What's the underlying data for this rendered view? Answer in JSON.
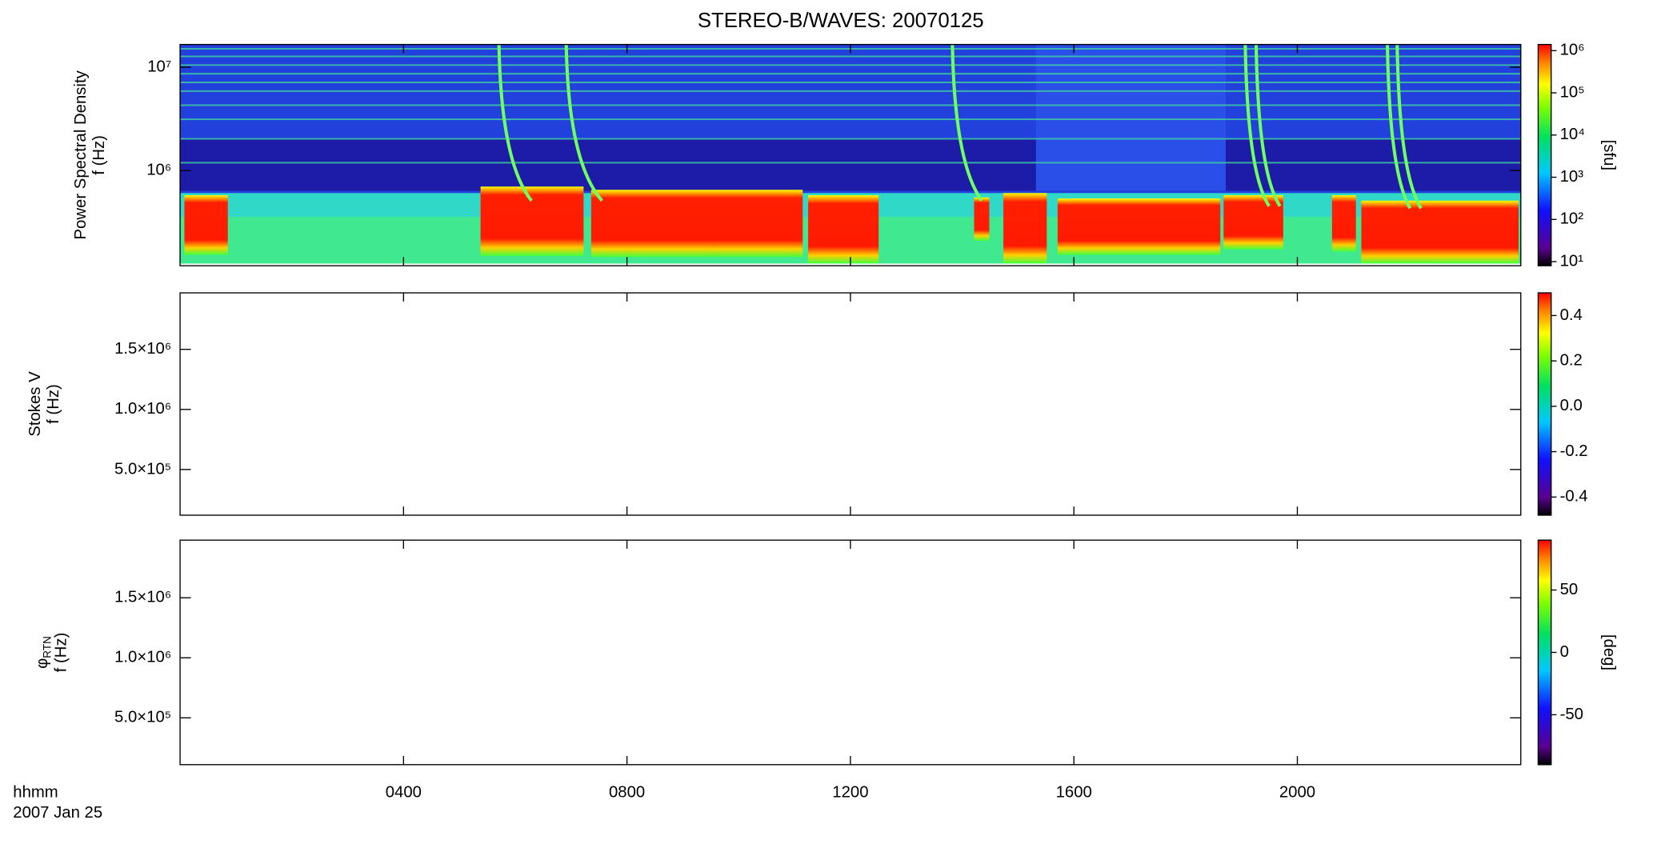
{
  "chart_data": [
    {
      "type": "heatmap",
      "title": "STEREO-B/WAVES: 20070125",
      "ylabel": [
        "Power Spectral Density",
        "f (Hz)"
      ],
      "log_y": true,
      "ylim": [
        120000,
        16600000
      ],
      "yticks": [
        {
          "value": 1000000,
          "label": "10⁶"
        },
        {
          "value": 10000000,
          "label": "10⁷"
        }
      ],
      "colorbar": {
        "log": true,
        "lim": [
          8,
          1400000
        ],
        "label": "[sfu]",
        "ticks": [
          {
            "value": 10,
            "label": "10¹"
          },
          {
            "value": 100,
            "label": "10²"
          },
          {
            "value": 1000,
            "label": "10³"
          },
          {
            "value": 10000,
            "label": "10⁴"
          },
          {
            "value": 100000,
            "label": "10⁵"
          },
          {
            "value": 1000000,
            "label": "10⁶"
          }
        ]
      }
    },
    {
      "type": "heatmap",
      "ylabel": [
        "Stokes V",
        "f (Hz)"
      ],
      "log_y": false,
      "ylim": [
        120000,
        1970000
      ],
      "yticks": [
        {
          "value": 500000,
          "label": "5.0×10⁵"
        },
        {
          "value": 1000000,
          "label": "1.0×10⁶"
        },
        {
          "value": 1500000,
          "label": "1.5×10⁶"
        }
      ],
      "colorbar": {
        "log": false,
        "lim": [
          -0.48,
          0.5
        ],
        "ticks": [
          -0.4,
          -0.2,
          {
            "value": 0,
            "label": "0.0"
          },
          0.2,
          0.4
        ]
      }
    },
    {
      "type": "heatmap",
      "ylabel_symbol": {
        "symbol": "φ",
        "subscript": "RTN"
      },
      "ylabel": [
        "f (Hz)"
      ],
      "log_y": false,
      "ylim": [
        110000,
        1980000
      ],
      "yticks": [
        {
          "value": 500000,
          "label": "5.0×10⁵"
        },
        {
          "value": 1000000,
          "label": "1.0×10⁶"
        },
        {
          "value": 1500000,
          "label": "1.5×10⁶"
        }
      ],
      "colorbar": {
        "log": false,
        "lim": [
          -90,
          90
        ],
        "label": "[deg]",
        "ticks": [
          -50,
          0,
          50
        ]
      },
      "xlabel": "hhmm",
      "date_label": "2007 Jan 25",
      "xlim": [
        0,
        24
      ],
      "xticks": [
        {
          "value": 4,
          "label": "0400"
        },
        {
          "value": 8,
          "label": "0800"
        },
        {
          "value": 12,
          "label": "1200"
        },
        {
          "value": 16,
          "label": "1600"
        },
        {
          "value": 20,
          "label": "2000"
        }
      ]
    }
  ]
}
